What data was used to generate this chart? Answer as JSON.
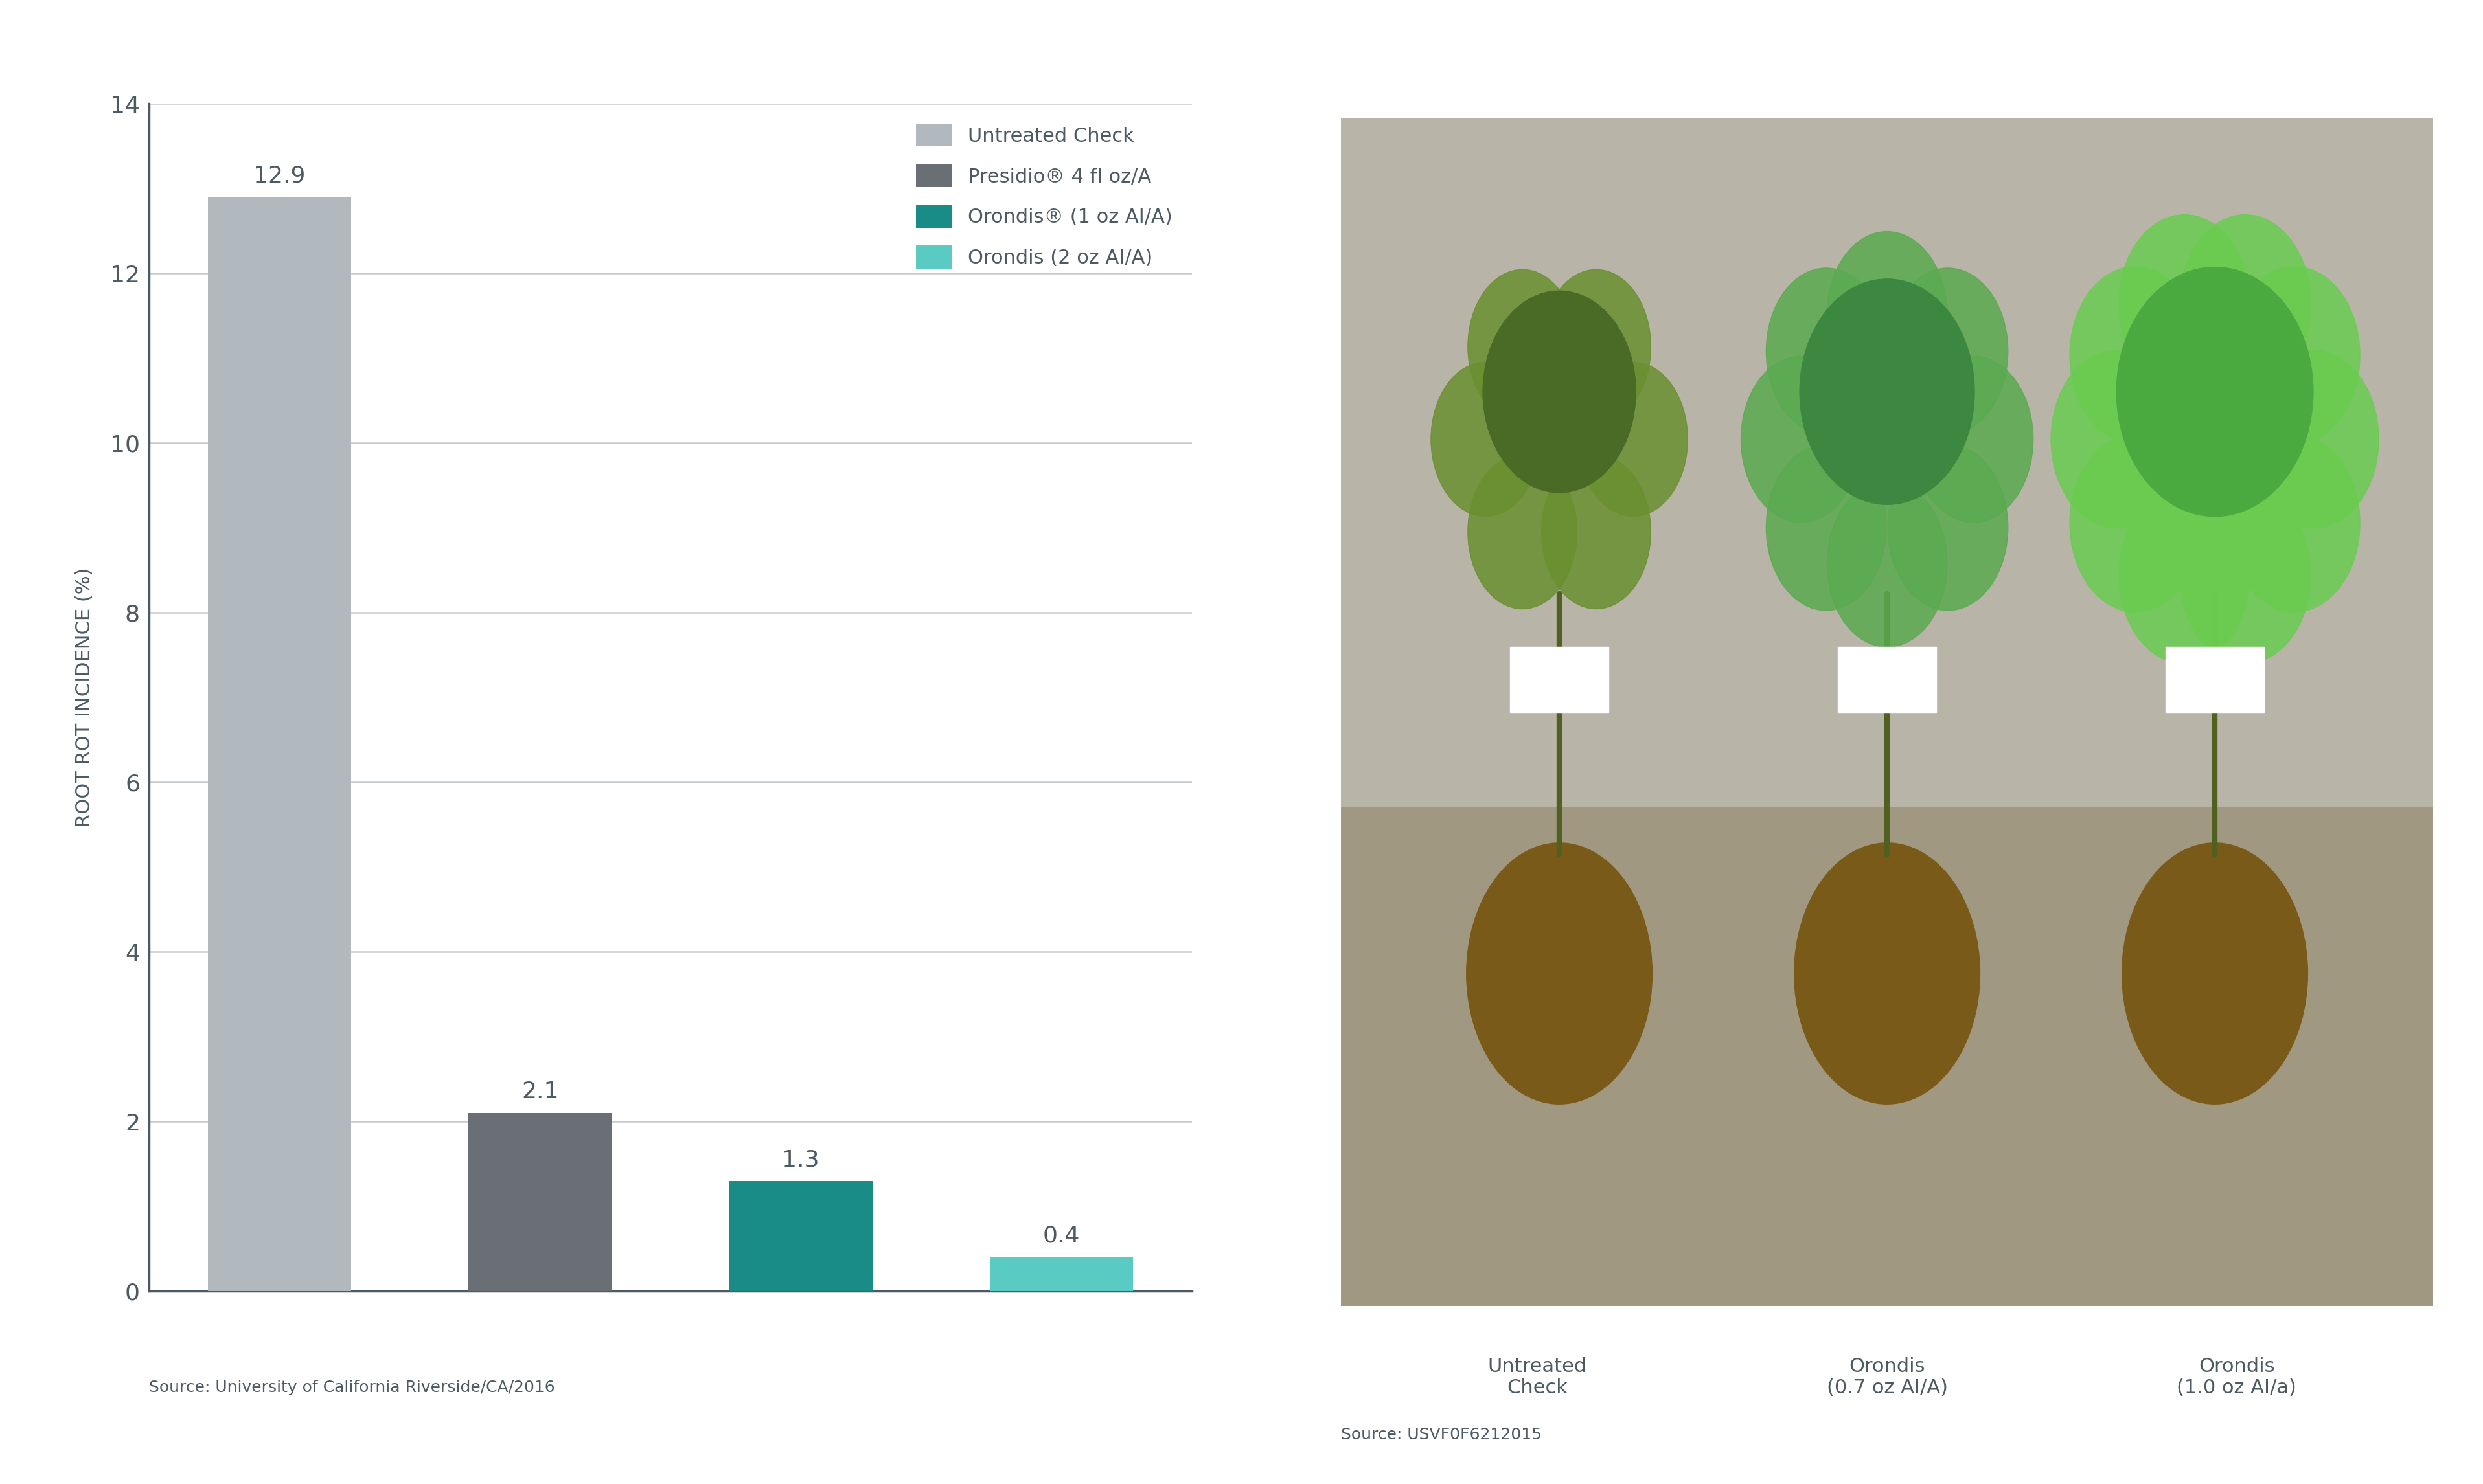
{
  "categories": [
    "Untreated Check",
    "Presidio® 4 fl oz/A",
    "Orondis® (1 oz AI/A)",
    "Orondis (2 oz AI/A)"
  ],
  "values": [
    12.9,
    2.1,
    1.3,
    0.4
  ],
  "bar_colors": [
    "#b2b9be",
    "#696f75",
    "#1a8c87",
    "#5acbc3"
  ],
  "ylabel": "ROOT ROT INCIDENCE (%)",
  "ylim": [
    0,
    14
  ],
  "yticks": [
    0,
    2,
    4,
    6,
    8,
    10,
    12,
    14
  ],
  "source_left": "Source: University of California Riverside/CA/2016",
  "source_right": "Source: USVF0F6212015",
  "legend_labels": [
    "Untreated Check",
    "Presidio® 4 fl oz/A",
    "Orondis® (1 oz AI/A)",
    "Orondis (2 oz AI/A)"
  ],
  "legend_colors": [
    "#b2b9be",
    "#696f75",
    "#1a8c87",
    "#5acbc3"
  ],
  "photo_caption_1": "Untreated\nCheck",
  "photo_caption_2": "Orondis\n(0.7 oz AI/A)",
  "photo_caption_3": "Orondis\n(1.0 oz AI/a)",
  "background_color": "#ffffff",
  "axis_color": "#4d5a64",
  "gridline_color": "#c5cace",
  "text_color": "#4d5a64",
  "bar_width": 0.55,
  "value_fontsize": 26,
  "tick_fontsize": 26,
  "ylabel_fontsize": 22,
  "legend_fontsize": 22,
  "source_fontsize": 18,
  "caption_fontsize": 22
}
